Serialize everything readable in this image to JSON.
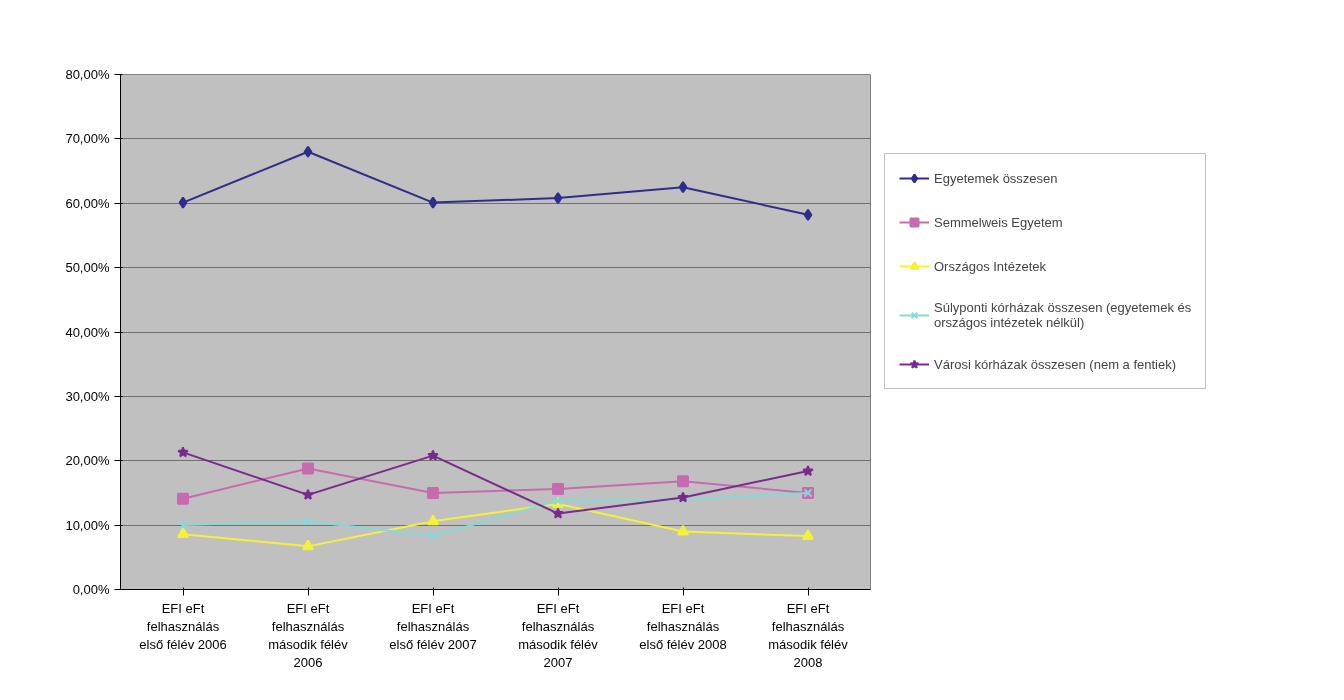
{
  "chart_data": {
    "type": "line",
    "categories": [
      "EFI eFt felhasználás első félév 2006",
      "EFI eFt felhasználás második félév 2006",
      "EFI eFt felhasználás első félév 2007",
      "EFI eFt felhasználás második félév 2007",
      "EFI eFt felhasználás első félév 2008",
      "EFI eFt felhasználás második félév 2008"
    ],
    "series": [
      {
        "name": "Egyetemek összesen",
        "color": "#2e2e8a",
        "marker": "diamond",
        "values": [
          60.1,
          68.0,
          60.1,
          60.8,
          62.5,
          58.2
        ]
      },
      {
        "name": "Semmelweis Egyetem",
        "color": "#c66bb0",
        "marker": "square",
        "values": [
          14.1,
          18.8,
          15.0,
          15.6,
          16.8,
          15.0
        ]
      },
      {
        "name": "Országos Intézetek",
        "color": "#f5f03a",
        "marker": "triangle",
        "values": [
          8.6,
          6.7,
          10.6,
          13.3,
          9.0,
          8.3
        ]
      },
      {
        "name": "Súlyponti kórházak összesen (egyetemek és országos intézetek nélkül)",
        "color": "#88d8d8",
        "marker": "cross",
        "values": [
          10.0,
          10.6,
          8.3,
          13.8,
          14.0,
          15.0
        ]
      },
      {
        "name": "Városi kórházak összesen (nem a fentiek)",
        "color": "#7a2a8a",
        "marker": "star",
        "values": [
          21.3,
          14.7,
          20.8,
          11.8,
          14.3,
          18.4
        ]
      }
    ],
    "ylim": [
      0,
      80
    ],
    "yticks": [
      {
        "value": 0,
        "label": "0,00%"
      },
      {
        "value": 10,
        "label": "10,00%"
      },
      {
        "value": 20,
        "label": "20,00%"
      },
      {
        "value": 30,
        "label": "30,00%"
      },
      {
        "value": 40,
        "label": "40,00%"
      },
      {
        "value": 50,
        "label": "50,00%"
      },
      {
        "value": 60,
        "label": "60,00%"
      },
      {
        "value": 70,
        "label": "70,00%"
      },
      {
        "value": 80,
        "label": "80,00%"
      }
    ],
    "grid": "y",
    "legend": "right",
    "line_style": "solid"
  }
}
